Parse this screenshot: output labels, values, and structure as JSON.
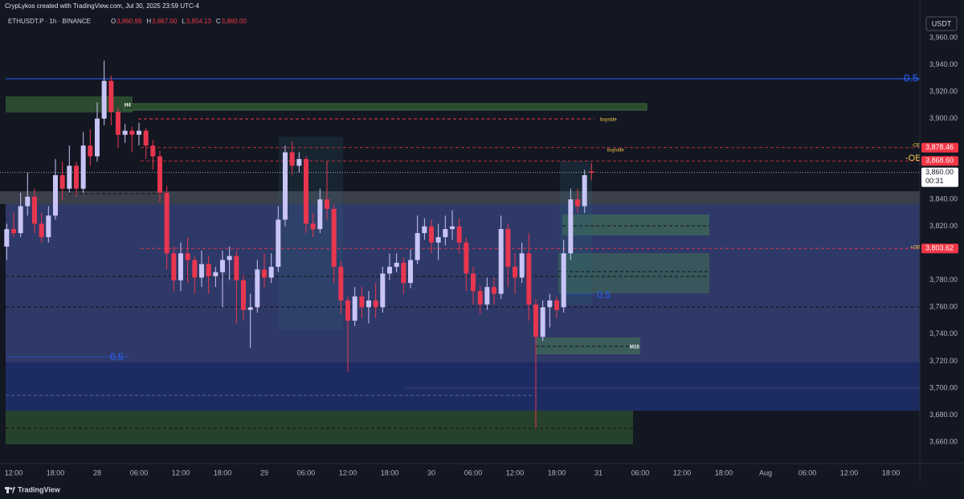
{
  "header": {
    "credit": "CrypLykos created with TradingView.com, Jul 30, 2025 23:59 UTC-4",
    "symbol": "ETHUSDT.P · 1h · BINANCE",
    "ohlc": [
      {
        "key": "O",
        "value": "3,860.99"
      },
      {
        "key": "H",
        "value": "3,867.00"
      },
      {
        "key": "L",
        "value": "3,854.13"
      },
      {
        "key": "C",
        "value": "3,860.00"
      }
    ]
  },
  "footer": {
    "brand": "TradingView"
  },
  "chart_data": {
    "type": "candlestick",
    "currency": "USDT",
    "up_color": "#c9c4f6",
    "down_color": "#e8364f",
    "x": [
      0,
      1,
      2,
      3,
      4,
      5,
      6,
      7,
      8,
      9,
      10,
      11,
      12,
      13,
      14,
      15,
      16,
      17,
      18,
      19,
      20,
      21,
      22,
      23,
      24,
      25,
      26,
      27,
      28,
      29,
      30,
      31,
      32,
      33,
      34,
      35,
      36,
      37,
      38,
      39,
      40,
      41,
      42,
      43,
      44,
      45,
      46,
      47,
      48,
      49,
      50,
      51,
      52,
      53,
      54,
      55,
      56,
      57,
      58,
      59,
      60,
      61,
      62,
      63,
      64,
      65,
      66,
      67,
      68,
      69,
      70,
      71,
      72,
      73,
      74,
      75,
      76,
      77,
      78,
      79,
      80,
      81,
      82,
      83,
      84
    ],
    "open": [
      3805,
      3818,
      3815,
      3835,
      3842,
      3822,
      3812,
      3828,
      3858,
      3848,
      3865,
      3848,
      3880,
      3872,
      3900,
      3928,
      3905,
      3888,
      3891,
      3888,
      3891,
      3880,
      3872,
      3845,
      3800,
      3780,
      3800,
      3795,
      3782,
      3792,
      3783,
      3786,
      3795,
      3798,
      3780,
      3758,
      3760,
      3788,
      3782,
      3790,
      3825,
      3875,
      3865,
      3870,
      3822,
      3818,
      3840,
      3833,
      3790,
      3765,
      3750,
      3768,
      3760,
      3765,
      3760,
      3785,
      3790,
      3793,
      3778,
      3795,
      3815,
      3820,
      3808,
      3812,
      3818,
      3820,
      3808,
      3785,
      3772,
      3762,
      3775,
      3770,
      3818,
      3790,
      3782,
      3800,
      3762,
      3738,
      3760,
      3765,
      3760,
      3800,
      3840,
      3835,
      3860.99
    ],
    "high": [
      3822,
      3830,
      3845,
      3860,
      3848,
      3830,
      3835,
      3870,
      3868,
      3880,
      3868,
      3890,
      3892,
      3912,
      3943,
      3932,
      3908,
      3896,
      3894,
      3897,
      3893,
      3884,
      3876,
      3850,
      3805,
      3808,
      3812,
      3798,
      3802,
      3798,
      3790,
      3802,
      3805,
      3802,
      3784,
      3770,
      3795,
      3800,
      3800,
      3835,
      3880,
      3883,
      3875,
      3872,
      3830,
      3848,
      3868,
      3836,
      3794,
      3768,
      3775,
      3775,
      3772,
      3778,
      3790,
      3800,
      3800,
      3797,
      3803,
      3828,
      3826,
      3825,
      3822,
      3828,
      3832,
      3826,
      3812,
      3790,
      3776,
      3782,
      3782,
      3828,
      3822,
      3800,
      3808,
      3815,
      3766,
      3765,
      3770,
      3768,
      3810,
      3848,
      3848,
      3862,
      3867
    ],
    "low": [
      3795,
      3812,
      3812,
      3828,
      3815,
      3808,
      3808,
      3825,
      3840,
      3845,
      3842,
      3845,
      3865,
      3868,
      3895,
      3895,
      3878,
      3882,
      3875,
      3880,
      3870,
      3862,
      3838,
      3788,
      3772,
      3772,
      3778,
      3770,
      3775,
      3770,
      3775,
      3760,
      3780,
      3748,
      3750,
      3730,
      3756,
      3775,
      3778,
      3786,
      3820,
      3858,
      3860,
      3815,
      3812,
      3815,
      3825,
      3778,
      3755,
      3712,
      3746,
      3752,
      3748,
      3752,
      3756,
      3780,
      3786,
      3770,
      3774,
      3792,
      3810,
      3800,
      3795,
      3806,
      3810,
      3800,
      3772,
      3762,
      3755,
      3758,
      3762,
      3766,
      3775,
      3770,
      3778,
      3750,
      3670,
      3735,
      3745,
      3752,
      3756,
      3795,
      3830,
      3830,
      3854.13
    ],
    "close": [
      3818,
      3815,
      3835,
      3842,
      3822,
      3812,
      3828,
      3858,
      3848,
      3865,
      3848,
      3880,
      3872,
      3900,
      3928,
      3905,
      3888,
      3891,
      3888,
      3891,
      3880,
      3872,
      3845,
      3800,
      3780,
      3800,
      3795,
      3782,
      3792,
      3783,
      3786,
      3795,
      3798,
      3780,
      3758,
      3760,
      3788,
      3782,
      3790,
      3825,
      3875,
      3865,
      3870,
      3822,
      3818,
      3840,
      3833,
      3790,
      3765,
      3750,
      3768,
      3760,
      3765,
      3760,
      3785,
      3790,
      3793,
      3778,
      3795,
      3815,
      3820,
      3808,
      3812,
      3818,
      3820,
      3808,
      3785,
      3772,
      3762,
      3775,
      3770,
      3818,
      3790,
      3782,
      3800,
      3762,
      3738,
      3760,
      3765,
      3758,
      3800,
      3840,
      3835,
      3858,
      3860
    ],
    "xlim": [
      -0.96,
      131.15
    ],
    "xticks": [
      {
        "value": 1,
        "label": "12:00"
      },
      {
        "value": 7,
        "label": "18:00"
      },
      {
        "value": 13,
        "label": "28"
      },
      {
        "value": 19,
        "label": "06:00"
      },
      {
        "value": 25,
        "label": "12:00"
      },
      {
        "value": 31,
        "label": "18:00"
      },
      {
        "value": 37,
        "label": "29"
      },
      {
        "value": 43,
        "label": "06:00"
      },
      {
        "value": 49,
        "label": "12:00"
      },
      {
        "value": 55,
        "label": "18:00"
      },
      {
        "value": 61,
        "label": "30"
      },
      {
        "value": 67,
        "label": "06:00"
      },
      {
        "value": 73,
        "label": "12:00"
      },
      {
        "value": 79,
        "label": "18:00"
      },
      {
        "value": 85,
        "label": "31"
      },
      {
        "value": 91,
        "label": "06:00"
      },
      {
        "value": 97,
        "label": "12:00"
      },
      {
        "value": 103,
        "label": "18:00"
      },
      {
        "value": 109,
        "label": "Aug"
      },
      {
        "value": 115,
        "label": "06:00"
      },
      {
        "value": 121,
        "label": "12:00"
      },
      {
        "value": 127,
        "label": "18:00"
      }
    ],
    "ylim": [
      3643.9,
      3976.1
    ],
    "yticks": [
      {
        "value": 3660,
        "label": "3,660.00"
      },
      {
        "value": 3680,
        "label": "3,680.00"
      },
      {
        "value": 3700,
        "label": "3,700.00"
      },
      {
        "value": 3720,
        "label": "3,720.00"
      },
      {
        "value": 3740,
        "label": "3,740.00"
      },
      {
        "value": 3760,
        "label": "3,760.00"
      },
      {
        "value": 3780,
        "label": "3,780.00"
      },
      {
        "value": 3820,
        "label": "3,820.00"
      },
      {
        "value": 3840,
        "label": "3,840.00"
      },
      {
        "value": 3900,
        "label": "3,900.00"
      },
      {
        "value": 3920,
        "label": "3,920.00"
      },
      {
        "value": 3940,
        "label": "3,940.00"
      },
      {
        "value": 3960,
        "label": "3,960.00"
      }
    ],
    "price_tags": [
      {
        "value": 3878.46,
        "label": "3,878.46",
        "color": "#f23645"
      },
      {
        "value": 3868.6,
        "label": "3,868.60",
        "color": "#f23645"
      },
      {
        "value": 3803.62,
        "label": "3,803.62",
        "color": "#f23645"
      }
    ],
    "last_price": {
      "value": 3860,
      "label": "3,860.00",
      "countdown": "00:31"
    },
    "annotations": [
      "0.5",
      "buyside",
      "buyside",
      "-OB",
      "-OB",
      "+OB",
      "H4",
      "M15",
      "0.5",
      "0.5"
    ]
  }
}
